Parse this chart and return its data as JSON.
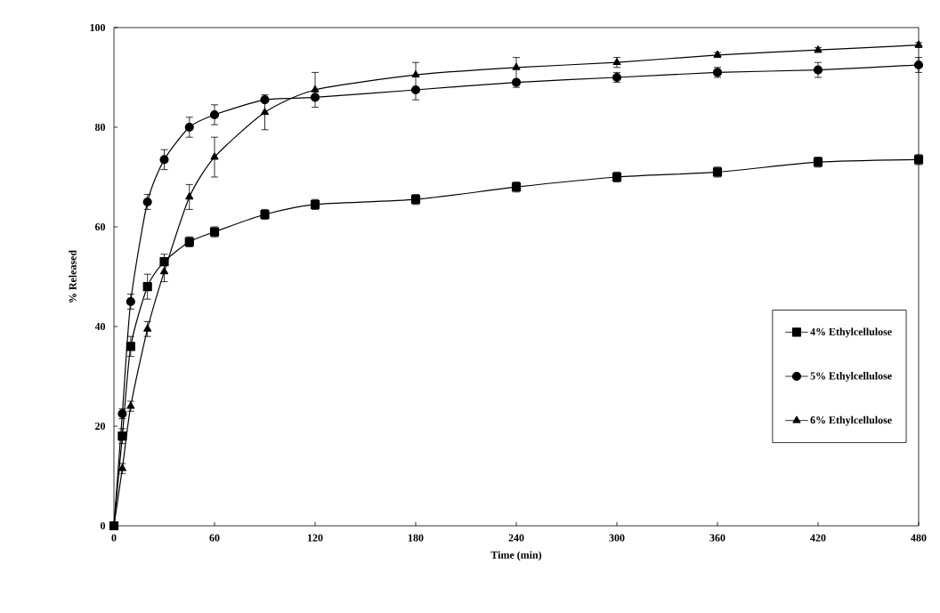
{
  "chart_data": {
    "type": "line",
    "xlabel": "Time (min)",
    "ylabel": "% Released",
    "x": [
      0,
      5,
      10,
      20,
      30,
      45,
      60,
      90,
      120,
      180,
      240,
      300,
      360,
      420,
      480
    ],
    "series": [
      {
        "name": "4% Ethylcellulose",
        "color": "#000000",
        "marker": "square",
        "values": [
          0,
          18,
          36,
          48,
          53,
          57,
          59,
          62.5,
          64.5,
          65.5,
          68,
          70,
          71,
          73,
          73.5
        ],
        "errors": [
          null,
          1.5,
          2,
          2.5,
          null,
          1,
          1,
          1,
          1,
          1,
          1,
          1,
          1,
          1,
          1
        ]
      },
      {
        "name": "5% Ethylcellulose",
        "color": "#000000",
        "marker": "circle",
        "values": [
          0,
          22.5,
          45,
          65,
          73.5,
          80,
          82.5,
          85.5,
          86,
          87.5,
          89,
          90,
          91,
          91.5,
          92.5
        ],
        "errors": [
          null,
          1,
          1.5,
          1.5,
          2,
          2,
          2,
          null,
          null,
          null,
          null,
          1,
          1,
          1.5,
          1.5
        ]
      },
      {
        "name": "6% Ethylcellulose",
        "color": "#000000",
        "marker": "triangle",
        "values": [
          0,
          11.5,
          24,
          39.5,
          51,
          66,
          74,
          83,
          87.5,
          90.5,
          92,
          93,
          94.5,
          95.5,
          96.5
        ],
        "errors": [
          null,
          1,
          1,
          1.5,
          [
            49,
            54.5
          ],
          2.5,
          4,
          [
            79.5,
            86.5
          ],
          [
            84,
            91
          ],
          [
            85.5,
            93
          ],
          [
            88,
            94
          ],
          1,
          0.5,
          0.5,
          0.5
        ]
      }
    ],
    "xlim": [
      0,
      480
    ],
    "xticks": [
      0,
      60,
      120,
      180,
      240,
      300,
      360,
      420,
      480
    ],
    "ylim": [
      0,
      100
    ],
    "yticks": [
      0,
      20,
      40,
      60,
      80,
      100
    ],
    "grid": false,
    "legend": "right",
    "line_style": "solid"
  }
}
